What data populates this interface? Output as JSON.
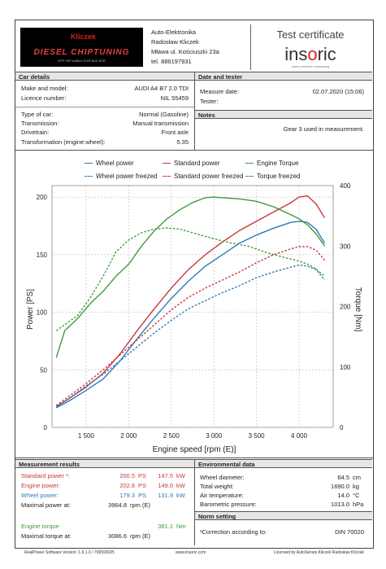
{
  "header": {
    "logo_brand": "DIESEL CHIPTUNING",
    "logo_sub": "DPF FAP AdBlue EGR NoX SCR",
    "logo_mark": "Kliczek",
    "company": "Auto-Elektronika",
    "person": "Radosław Kliczek",
    "address": "Mława  ul. Kościuszki  23a",
    "phone": "tel. 886197931",
    "cert_title": "Test certificate",
    "insoric_pre": "ins",
    "insoric_o": "o",
    "insoric_post": "ric",
    "insoric_tagline": "swiss precision measuring"
  },
  "car_details": {
    "title": "Car details",
    "make_label": "Make and model:",
    "make_value": "AUDI A4 B7 2.0 TDI",
    "licence_label": "Licence number:",
    "licence_value": "NIL 55459",
    "type_label": "Type of car:",
    "type_value": "Normal (Gasoline)",
    "transmission_label": "Transmission:",
    "transmission_value": "Manual transmission",
    "drivetrain_label": "Drivetrain:",
    "drivetrain_value": "Front axle",
    "transformation_label": "Transformation (engine:wheel):",
    "transformation_value": "5.35"
  },
  "date_tester": {
    "title": "Date and tester",
    "measure_label": "Measure date:",
    "measure_value": "02.07.2020 (15:06)",
    "tester_label": "Tester:"
  },
  "notes": {
    "title": "Notes",
    "text": "Gear 3 used in measurement."
  },
  "legend": {
    "wheel_power": "Wheel power",
    "standard_power": "Standard power",
    "engine_torque": "Engine Torque",
    "wheel_power_freezed": "Wheel power freezed",
    "standard_power_freezed": "Standard power freezed",
    "torque_freezed": "Torque freezed"
  },
  "colors": {
    "wheel": "#2e7ab8",
    "standard": "#c8383c",
    "torque": "#3f9a3f"
  },
  "chart_data": {
    "type": "line",
    "xlabel": "Engine speed [rpm (E)]",
    "ylabel": "Power [PS]",
    "y2label": "Torque [Nm]",
    "xlim": [
      1100,
      4400
    ],
    "ylim": [
      0,
      210
    ],
    "y2lim": [
      0,
      400
    ],
    "xticks": [
      1500,
      2000,
      2500,
      3000,
      3500,
      4000
    ],
    "xtick_labels": [
      "1 500",
      "2 000",
      "2 500",
      "3 000",
      "3 500",
      "4 000"
    ],
    "yticks": [
      0,
      50,
      100,
      150,
      200
    ],
    "y2ticks": [
      0,
      100,
      200,
      300,
      400
    ],
    "grid": true,
    "series": [
      {
        "name": "Wheel power",
        "axis": "left",
        "dash": false,
        "color_key": "wheel",
        "x": [
          1150,
          1300,
          1500,
          1700,
          1900,
          2100,
          2300,
          2500,
          2700,
          2900,
          3100,
          3300,
          3500,
          3700,
          3900,
          4000,
          4100,
          4200,
          4300
        ],
        "y": [
          17,
          23,
          32,
          42,
          58,
          77,
          95,
          112,
          127,
          140,
          150,
          160,
          167,
          173,
          178,
          179,
          178,
          172,
          160
        ]
      },
      {
        "name": "Standard power",
        "axis": "left",
        "dash": false,
        "color_key": "standard",
        "x": [
          1150,
          1300,
          1500,
          1700,
          1900,
          2100,
          2300,
          2500,
          2700,
          2900,
          3100,
          3300,
          3500,
          3700,
          3900,
          4000,
          4100,
          4200,
          4300
        ],
        "y": [
          18,
          25,
          35,
          47,
          64,
          84,
          103,
          121,
          137,
          150,
          161,
          171,
          179,
          187,
          195,
          200,
          201,
          194,
          182
        ]
      },
      {
        "name": "Engine Torque",
        "axis": "right",
        "dash": false,
        "color_key": "torque",
        "x": [
          1150,
          1250,
          1400,
          1550,
          1700,
          1850,
          2000,
          2150,
          2300,
          2450,
          2600,
          2750,
          2900,
          3000,
          3100,
          3300,
          3500,
          3700,
          3900,
          4000,
          4100,
          4200,
          4300
        ],
        "y": [
          115,
          160,
          180,
          205,
          225,
          250,
          270,
          300,
          325,
          345,
          360,
          372,
          380,
          381,
          380,
          378,
          374,
          365,
          352,
          345,
          335,
          320,
          300
        ]
      },
      {
        "name": "Wheel power freezed",
        "axis": "left",
        "dash": true,
        "color_key": "wheel",
        "x": [
          1150,
          1300,
          1500,
          1700,
          1900,
          2100,
          2300,
          2500,
          2700,
          2900,
          3100,
          3300,
          3500,
          3700,
          3900,
          4000,
          4100,
          4200,
          4300
        ],
        "y": [
          18,
          25,
          36,
          46,
          58,
          70,
          82,
          93,
          103,
          110,
          117,
          123,
          130,
          135,
          139,
          141,
          140,
          137,
          128
        ]
      },
      {
        "name": "Standard power freezed",
        "axis": "left",
        "dash": true,
        "color_key": "standard",
        "x": [
          1150,
          1300,
          1500,
          1700,
          1900,
          2100,
          2300,
          2500,
          2700,
          2900,
          3100,
          3300,
          3500,
          3700,
          3900,
          4000,
          4100,
          4200,
          4300
        ],
        "y": [
          19,
          27,
          38,
          50,
          63,
          76,
          89,
          102,
          113,
          121,
          128,
          135,
          143,
          150,
          155,
          157,
          157,
          154,
          145
        ]
      },
      {
        "name": "Torque freezed",
        "axis": "right",
        "dash": true,
        "color_key": "torque",
        "x": [
          1150,
          1250,
          1400,
          1550,
          1700,
          1850,
          2000,
          2150,
          2300,
          2450,
          2600,
          2800,
          3000,
          3200,
          3400,
          3600,
          3800,
          4000,
          4100,
          4200,
          4300
        ],
        "y": [
          160,
          170,
          185,
          215,
          250,
          290,
          310,
          322,
          328,
          330,
          328,
          320,
          312,
          305,
          300,
          290,
          282,
          275,
          270,
          262,
          250
        ]
      }
    ]
  },
  "measurement": {
    "title": "Measurement results",
    "std_label": "Standard power ¹:",
    "std_ps": "200.5",
    "std_kw": "147.5",
    "eng_label": "Engine power:",
    "eng_ps": "202.6",
    "eng_kw": "149.0",
    "wheel_label": "Wheel power:",
    "wheel_ps": "179.3",
    "wheel_kw": "131.9",
    "unit_ps": "PS",
    "unit_kw": "kW",
    "maxpow_label": "Maximal power at:",
    "maxpow_value": "3964.8",
    "unit_rpm": "rpm (E)",
    "torque_label": "Engine torque",
    "torque_value": "381.1",
    "unit_nm": "Nm",
    "maxtorque_label": "Maximal torque at:",
    "maxtorque_value": "3086.6"
  },
  "environment": {
    "title": "Environmental data",
    "wheel_d_label": "Wheel diameter:",
    "wheel_d_value": "64.5",
    "wheel_d_unit": "cm",
    "weight_label": "Total weight:",
    "weight_value": "1690.0",
    "weight_unit": "kg",
    "air_label": "Air temperature:",
    "air_value": "14.0",
    "air_unit": "°C",
    "baro_label": "Barometric pressure:",
    "baro_value": "1013.0",
    "baro_unit": "hPa"
  },
  "norm": {
    "title": "Norm setting",
    "corr_label": "¹Correction according to:",
    "corr_value": "DIN 70020"
  },
  "footer": {
    "version": "RealPower Software Version: 1.6.1.0 / 796593025",
    "site": "www.insoric.com",
    "licensed": "Licensed by AutoSerwis Kliczek Radosław Kliczek"
  }
}
